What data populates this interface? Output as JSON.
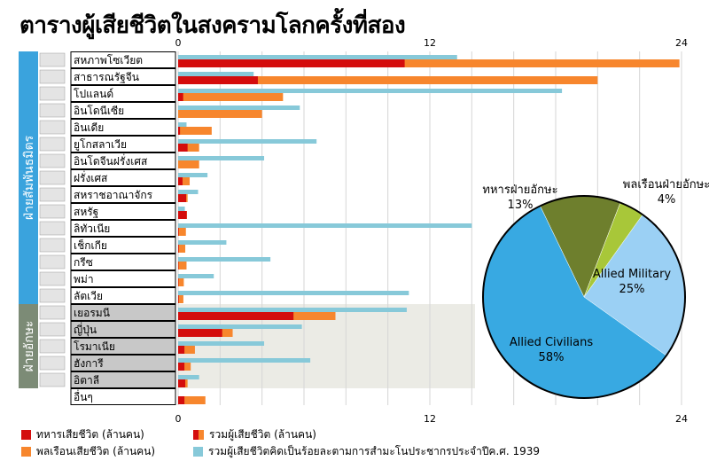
{
  "title": "ตารางผู้เสียชีวิตในสงครามโลกครั้งที่สอง",
  "colors": {
    "military": "#d40d0d",
    "civilian": "#f7862d",
    "percent": "#87c9d9",
    "allies_band": "#3aa3dd",
    "axis_band": "#7c8b76",
    "axis_bg": "#ececE6",
    "pie_allied_civilians": "#38a9e2",
    "pie_allied_military": "#9bd0f4",
    "pie_axis_military": "#6e7f2d",
    "pie_axis_civilians": "#a8c739"
  },
  "groups": [
    {
      "label": "ฝ่ายสัมพันธมิตร",
      "key": "allies"
    },
    {
      "label": "ฝ่ายอักษะ",
      "key": "axis"
    }
  ],
  "chart_data": {
    "type": "bar",
    "title": "ตารางผู้เสียชีวิตในสงครามโลกครั้งที่สอง",
    "xlim": [
      0,
      24
    ],
    "ticks": [
      "0",
      "12",
      "24"
    ],
    "categories": [
      "สหภาพโซเวียต",
      "สาธารณรัฐจีน",
      "โปแลนด์",
      "อินโดนีเซีย",
      "อินเดีย",
      "ยูโกสลาเวีย",
      "อินโดจีนฝรั่งเศส",
      "ฝรั่งเศส",
      "สหราชอาณาจักร",
      "สหรัฐ",
      "ลิทัวเนีย",
      "เช็กเกีย",
      "กรีซ",
      "พม่า",
      "ลัตเวีย",
      "เยอรมนี",
      "ญี่ปุ่น",
      "โรมาเนีย",
      "ฮังการี",
      "อิตาลี",
      "อื่นๆ"
    ],
    "group_of": [
      "allies",
      "allies",
      "allies",
      "allies",
      "allies",
      "allies",
      "allies",
      "allies",
      "allies",
      "allies",
      "allies",
      "allies",
      "allies",
      "allies",
      "allies",
      "axis",
      "axis",
      "axis",
      "axis",
      "axis",
      "none"
    ],
    "series": [
      {
        "name": "ทหารเสียชีวิต (ล้านคน)",
        "values": [
          10.8,
          3.8,
          0.24,
          0.0,
          0.09,
          0.45,
          0.0,
          0.21,
          0.38,
          0.41,
          0.03,
          0.03,
          0.02,
          0.02,
          0.03,
          5.5,
          2.1,
          0.3,
          0.3,
          0.34,
          0.3
        ]
      },
      {
        "name": "รวมผู้เสียชีวิต (ล้านคน)",
        "values": [
          23.9,
          20.0,
          5.0,
          4.0,
          1.6,
          1.0,
          1.0,
          0.55,
          0.45,
          0.42,
          0.37,
          0.34,
          0.4,
          0.27,
          0.25,
          7.5,
          2.6,
          0.8,
          0.6,
          0.45,
          1.3
        ]
      },
      {
        "name": "รวมผู้เสียชีวิตคิดเป็นร้อยละตามการสำมะโนประชากรประจำปีค.ศ. 1939",
        "values": [
          13.3,
          3.6,
          18.3,
          5.8,
          0.4,
          6.6,
          4.1,
          1.4,
          0.95,
          0.32,
          14.0,
          2.3,
          4.4,
          1.7,
          11.0,
          10.9,
          5.9,
          4.1,
          6.3,
          1.0,
          0.0
        ]
      }
    ],
    "pie": {
      "slices": [
        {
          "label": "Allied Civilians",
          "pct": "58%",
          "value": 58
        },
        {
          "label": "Allied Military",
          "pct": "25%",
          "value": 25
        },
        {
          "label": "พลเรือนฝ่ายอักษะ",
          "pct": "4%",
          "value": 4
        },
        {
          "label": "ทหารฝ่ายอักษะ",
          "pct": "13%",
          "value": 13
        }
      ]
    }
  },
  "legend": [
    {
      "text": "ทหารเสียชีวิต (ล้านคน)"
    },
    {
      "text": "พลเรือนเสียชีวิต (ล้านคน)"
    },
    {
      "text": "รวมผู้เสียชีวิต (ล้านคน)"
    },
    {
      "text": "รวมผู้เสียชีวิตคิดเป็นร้อยละตามการสำมะโนประชากรประจำปีค.ศ. 1939"
    }
  ]
}
